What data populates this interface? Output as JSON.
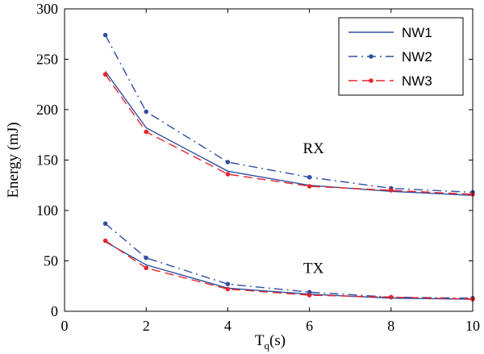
{
  "chart_data": {
    "type": "line",
    "xlabel": {
      "main": "T",
      "sub": "q",
      "suffix": "(s)"
    },
    "ylabel": "Energy (mJ)",
    "xlim": [
      0,
      10
    ],
    "ylim": [
      0,
      300
    ],
    "xticks": [
      "0",
      "2",
      "4",
      "6",
      "8",
      "10"
    ],
    "yticks": [
      "0",
      "50",
      "100",
      "150",
      "200",
      "250",
      "300"
    ],
    "grid": false,
    "legend_position": "top-right",
    "annotations": [
      {
        "text": "RX",
        "x": 6.1,
        "y": 157
      },
      {
        "text": "TX",
        "x": 6.1,
        "y": 38
      }
    ],
    "x": [
      1,
      2,
      4,
      6,
      8,
      10
    ],
    "series": [
      {
        "name": "NW1",
        "group": "RX",
        "color": "#2e4fa0",
        "style": "solid",
        "marker": false,
        "values": [
          238,
          182,
          139,
          125,
          119,
          115
        ]
      },
      {
        "name": "NW2",
        "group": "RX",
        "color": "#2e4fa0",
        "style": "dashdot",
        "marker": true,
        "values": [
          274,
          198,
          148,
          133,
          122,
          118
        ]
      },
      {
        "name": "NW3",
        "group": "RX",
        "color": "#e8232a",
        "style": "dashed",
        "marker": true,
        "values": [
          235,
          178,
          136,
          124,
          120,
          116
        ]
      },
      {
        "name": "NW1",
        "group": "TX",
        "color": "#2e4fa0",
        "style": "solid",
        "marker": false,
        "values": [
          69,
          46,
          23,
          17,
          13,
          12
        ]
      },
      {
        "name": "NW2",
        "group": "TX",
        "color": "#2e4fa0",
        "style": "dashdot",
        "marker": true,
        "values": [
          87,
          53,
          27,
          19,
          14,
          13
        ]
      },
      {
        "name": "NW3",
        "group": "TX",
        "color": "#e8232a",
        "style": "dashed",
        "marker": true,
        "values": [
          70,
          43,
          22,
          16,
          14,
          12
        ]
      }
    ],
    "legend": [
      {
        "label": "NW1",
        "color": "#2e4fa0",
        "style": "solid",
        "marker": false
      },
      {
        "label": "NW2",
        "color": "#2e4fa0",
        "style": "dashdot",
        "marker": true
      },
      {
        "label": "NW3",
        "color": "#e8232a",
        "style": "dashed",
        "marker": true
      }
    ]
  }
}
